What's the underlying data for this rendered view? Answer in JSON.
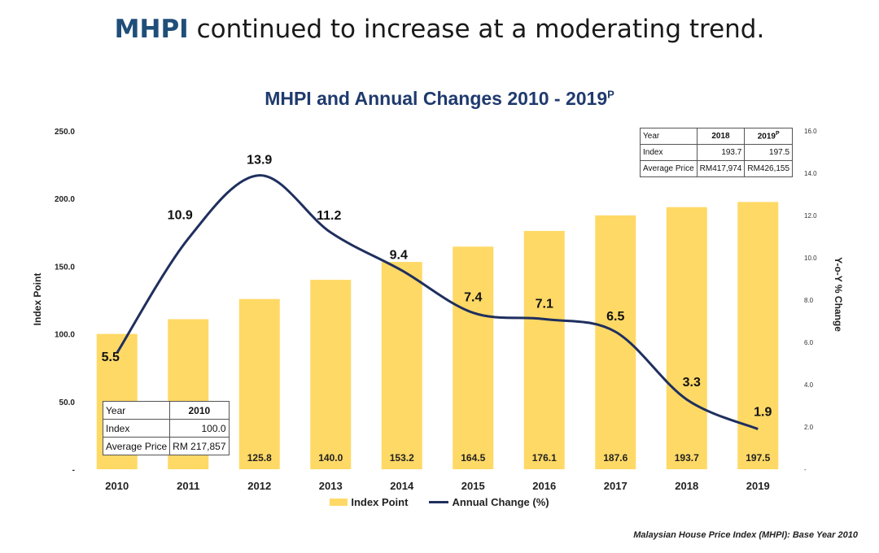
{
  "header": {
    "accent": "MHPI",
    "rest": " continued to increase at a moderating trend."
  },
  "chart_title": {
    "main": "MHPI and Annual Changes 2010 -  2019",
    "sup": "P"
  },
  "footnote": "Malaysian House Price Index (MHPI): Base Year 2010",
  "colors": {
    "bar": "#ffd966",
    "line": "#1f2f5e",
    "title": "#1f3a6e",
    "accent": "#1f4e79"
  },
  "chart_data": {
    "type": "bar+line",
    "categories": [
      "2010",
      "2011",
      "2012",
      "2013",
      "2014",
      "2015",
      "2016",
      "2017",
      "2018",
      "2019"
    ],
    "series": [
      {
        "name": "Index Point",
        "type": "bar",
        "axis": "left",
        "values": [
          100.0,
          110.9,
          125.8,
          140.0,
          153.2,
          164.5,
          176.1,
          187.6,
          193.7,
          197.5
        ],
        "labels": [
          "",
          "",
          "125.8",
          "140.0",
          "153.2",
          "164.5",
          "176.1",
          "187.6",
          "193.7",
          "197.5"
        ]
      },
      {
        "name": "Annual Change (%)",
        "type": "line",
        "axis": "right",
        "values": [
          5.5,
          10.9,
          13.9,
          11.2,
          9.4,
          7.4,
          7.1,
          6.5,
          3.3,
          1.9
        ],
        "labels": [
          "5.5",
          "10.9",
          "13.9",
          "11.2",
          "9.4",
          "7.4",
          "7.1",
          "6.5",
          "3.3",
          "1.9"
        ]
      }
    ],
    "ylabel": "Index Point",
    "y2label": "Y-o-Y % Change",
    "ylim": [
      0,
      250
    ],
    "y2lim": [
      0,
      16
    ],
    "yticks": [
      "-",
      "50.0",
      "100.0",
      "150.0",
      "200.0",
      "250.0"
    ],
    "y2ticks": [
      "-",
      "2.0",
      "4.0",
      "6.0",
      "8.0",
      "10.0",
      "12.0",
      "14.0",
      "16.0"
    ],
    "legend": "bottom",
    "grid": false
  },
  "table_2018": {
    "headers": [
      "Year",
      "2018",
      "2019"
    ],
    "header_sup": "P",
    "rows": [
      [
        "Index",
        "193.7",
        "197.5"
      ],
      [
        "Average Price",
        "RM417,974",
        "RM426,155"
      ]
    ]
  },
  "table_2010": {
    "headers": [
      "Year",
      "2010"
    ],
    "rows": [
      [
        "Index",
        "100.0"
      ],
      [
        "Average Price",
        "RM 217,857"
      ]
    ]
  }
}
